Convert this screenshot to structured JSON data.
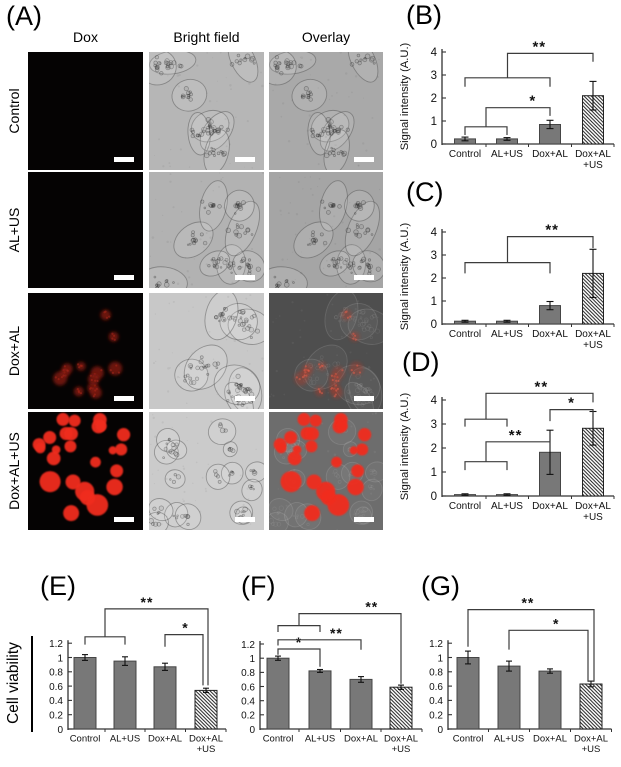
{
  "panel_a": {
    "label": "(A)",
    "column_headers": [
      "Dox",
      "Bright field",
      "Overlay"
    ],
    "row_labels": [
      "Control",
      "AL+US",
      "Dox+AL",
      "Dox+AL+US"
    ]
  },
  "viability_ylabel": "Cell viability",
  "colors": {
    "bar_fill": "#787878",
    "bar_edge": "#454545",
    "bracket": "#3c3c3c",
    "axis": "#333333",
    "red_bright": "#f02a1c",
    "red_faint": "#7c170f",
    "scalebar": "#ffffff"
  },
  "chart_data": [
    {
      "panel": "B",
      "panel_label": "(B)",
      "type": "bar",
      "title": "",
      "xlabel": "",
      "ylabel": "Signal intensity (A.U.)",
      "ylim": [
        0,
        4
      ],
      "yticks": [
        0,
        1,
        2,
        3,
        4
      ],
      "categories": [
        "Control",
        "AL+US",
        "Dox+AL",
        "Dox+AL\n+US"
      ],
      "values": [
        0.22,
        0.22,
        0.85,
        2.1
      ],
      "errors": [
        0.08,
        0.06,
        0.18,
        0.62
      ],
      "hatched_index": 3,
      "significance": [
        {
          "kind": "grouped",
          "ga": 0,
          "gb": 1,
          "gy": 0.75,
          "g_end": 0.39,
          "top": 1.58,
          "t": 2,
          "t_end": 1.22,
          "label": "*",
          "lx": 1.6
        },
        {
          "kind": "grouped",
          "ga": 0,
          "gb": 2,
          "gy": 2.88,
          "g_end": 2.49,
          "top": 3.94,
          "t": 3,
          "t_end": 3.58,
          "label": "**",
          "lx": 1.75
        }
      ]
    },
    {
      "panel": "C",
      "panel_label": "(C)",
      "type": "bar",
      "title": "",
      "xlabel": "",
      "ylabel": "Signal intensity (A.U.)",
      "ylim": [
        0,
        4
      ],
      "yticks": [
        0,
        1,
        2,
        3,
        4
      ],
      "categories": [
        "Control",
        "AL+US",
        "Dox+AL",
        "Dox+AL\n+US"
      ],
      "values": [
        0.12,
        0.12,
        0.8,
        2.2
      ],
      "errors": [
        0.04,
        0.04,
        0.18,
        1.05
      ],
      "hatched_index": 3,
      "significance": [
        {
          "kind": "grouped",
          "ga": 0,
          "gb": 2,
          "gy": 2.67,
          "g_end": 2.2,
          "top": 3.8,
          "t": 3,
          "t_end": 3.3,
          "label": "**",
          "lx": 2.05
        }
      ]
    },
    {
      "panel": "D",
      "panel_label": "(D)",
      "type": "bar",
      "title": "",
      "xlabel": "",
      "ylabel": "Signal intensity (A.U.)",
      "ylim": [
        0,
        4
      ],
      "yticks": [
        0,
        1,
        2,
        3,
        4
      ],
      "categories": [
        "Control",
        "AL+US",
        "Dox+AL",
        "Dox+AL\n+US"
      ],
      "values": [
        0.06,
        0.06,
        1.82,
        2.82
      ],
      "errors": [
        0.03,
        0.03,
        0.92,
        0.7
      ],
      "hatched_index": 3,
      "significance": [
        {
          "kind": "grouped",
          "ga": 0,
          "gb": 1,
          "gy": 1.43,
          "g_end": 1.08,
          "top": 2.26,
          "t": 2,
          "t_end": 1.9,
          "label": "**",
          "lx": 1.2
        },
        {
          "kind": "grouped",
          "ga": 0,
          "gb": 1,
          "gy": 3.2,
          "g_end": 2.89,
          "top": 4.28,
          "t": 3,
          "t_end": 3.9,
          "label": "**",
          "lx": 1.8
        },
        {
          "kind": "simple",
          "a": 2,
          "b": 3,
          "y": 3.6,
          "a_end": 3.12,
          "b_end": 3.12,
          "label": "*",
          "lx": 2.5
        }
      ]
    },
    {
      "panel": "E",
      "panel_label": "(E)",
      "type": "bar",
      "title": "",
      "xlabel": "",
      "ylabel": "",
      "ylim": [
        0,
        1.2
      ],
      "yticks": [
        0,
        0.2,
        0.4,
        0.6,
        0.8,
        1,
        1.2
      ],
      "categories": [
        "Control",
        "AL+US",
        "Dox+AL",
        "Dox+AL\n+US"
      ],
      "values": [
        1.0,
        0.95,
        0.87,
        0.54
      ],
      "errors": [
        0.04,
        0.06,
        0.05,
        0.03
      ],
      "hatched_index": 3,
      "significance": [
        {
          "kind": "grouped",
          "ga": 0,
          "gb": 1,
          "gy": 1.29,
          "g_end": 1.18,
          "top": 1.68,
          "t": 3,
          "t_end": 0.61,
          "txo": 2,
          "label": "**",
          "lx": 1.55
        },
        {
          "kind": "simple",
          "a": 2,
          "b": 3,
          "y": 1.32,
          "a_end": 1.15,
          "b_end": 0.61,
          "bxo": -3,
          "label": "*",
          "lx": 2.5
        }
      ]
    },
    {
      "panel": "F",
      "panel_label": "(F)",
      "type": "bar",
      "title": "",
      "xlabel": "",
      "ylabel": "",
      "ylim": [
        0,
        1.2
      ],
      "yticks": [
        0,
        0.2,
        0.4,
        0.6,
        0.8,
        1,
        1.2
      ],
      "categories": [
        "Control",
        "AL+US",
        "Dox+AL",
        "Dox+AL\n+US"
      ],
      "values": [
        1.0,
        0.82,
        0.7,
        0.59
      ],
      "errors": [
        0.03,
        0.02,
        0.04,
        0.03
      ],
      "hatched_index": 3,
      "significance": [
        {
          "kind": "simple",
          "a": 0,
          "b": 1,
          "y": 1.13,
          "a_end": 1.05,
          "b_end": 0.88,
          "label": "*",
          "lx": 0.5
        },
        {
          "kind": "simple",
          "a": 0,
          "b": 2,
          "y": 1.26,
          "a_end": 1.18,
          "b_end": 1.12,
          "label": "**",
          "lx": 1.4
        },
        {
          "kind": "grouped",
          "ga": 0,
          "gb": 1,
          "gy": 1.46,
          "g_end": 1.37,
          "top": 1.63,
          "t": 3,
          "t_end": 0.64,
          "label": "**",
          "lx": 2.27
        }
      ]
    },
    {
      "panel": "G",
      "panel_label": "(G)",
      "type": "bar",
      "title": "",
      "xlabel": "",
      "ylabel": "",
      "ylim": [
        0,
        1.2
      ],
      "yticks": [
        0,
        0.2,
        0.4,
        0.6,
        0.8,
        1,
        1.2
      ],
      "categories": [
        "Control",
        "AL+US",
        "Dox+AL",
        "Dox+AL\n+US"
      ],
      "values": [
        1.0,
        0.88,
        0.81,
        0.63
      ],
      "errors": [
        0.09,
        0.07,
        0.03,
        0.04
      ],
      "hatched_index": 3,
      "significance": [
        {
          "kind": "simple",
          "a": 0,
          "b": 3,
          "y": 1.67,
          "a_end": 1.15,
          "b_end": 0.66,
          "bxo": 3,
          "label": "**",
          "lx": 1.46
        },
        {
          "kind": "simple",
          "a": 1,
          "b": 3,
          "y": 1.38,
          "a_end": 1.11,
          "b_end": 0.66,
          "bxo": -3,
          "label": "*",
          "lx": 2.15
        }
      ]
    }
  ]
}
